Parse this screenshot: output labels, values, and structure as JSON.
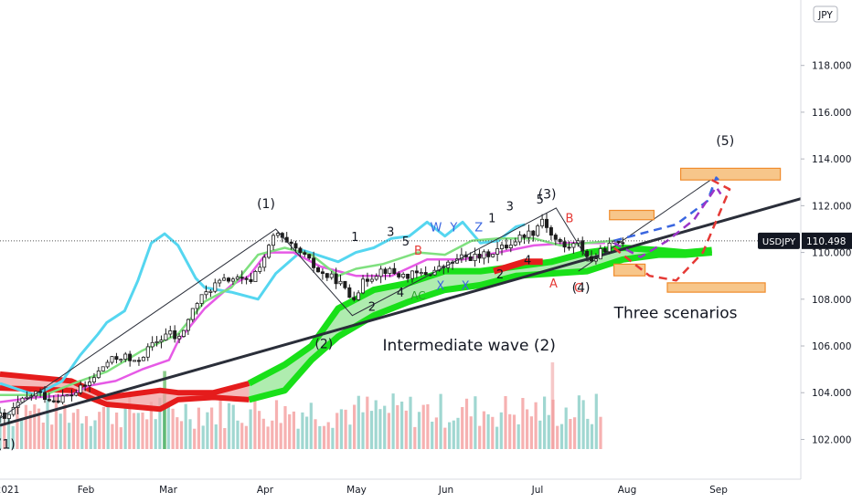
{
  "chart_data": {
    "type": "candlestick",
    "symbol": "USDJPY",
    "last_price_label": "110.498",
    "last_price": 110.498,
    "currency_label": "JPY",
    "x_tick_labels": [
      {
        "label": "2021",
        "x": 0
      },
      {
        "label": "Feb",
        "x": 1
      },
      {
        "label": "Mar",
        "x": 2
      },
      {
        "label": "Apr",
        "x": 3
      },
      {
        "label": "May",
        "x": 4
      },
      {
        "label": "Jun",
        "x": 5
      },
      {
        "label": "Jul",
        "x": 6
      },
      {
        "label": "Aug",
        "x": 7
      },
      {
        "label": "Sep",
        "x": 8
      }
    ],
    "y_ticks": [
      102,
      104,
      106,
      108,
      110,
      112,
      114,
      116,
      118
    ],
    "y_tick_labels": [
      "102.000",
      "104.000",
      "106.000",
      "108.000",
      "110.000",
      "112.000",
      "114.000",
      "116.000",
      "118.000"
    ],
    "ylim": [
      100.3,
      120.8
    ],
    "xlim": [
      0.0,
      9.0
    ],
    "grid": false,
    "price_path": [
      [
        0.0,
        103.0
      ],
      [
        0.05,
        102.8
      ],
      [
        0.2,
        103.5
      ],
      [
        0.4,
        104.0
      ],
      [
        0.6,
        103.7
      ],
      [
        0.8,
        103.9
      ],
      [
        1.0,
        104.4
      ],
      [
        1.2,
        105.3
      ],
      [
        1.4,
        105.6
      ],
      [
        1.5,
        105.2
      ],
      [
        1.7,
        106.0
      ],
      [
        1.9,
        106.6
      ],
      [
        2.0,
        106.2
      ],
      [
        2.2,
        107.8
      ],
      [
        2.4,
        108.6
      ],
      [
        2.6,
        108.9
      ],
      [
        2.8,
        108.7
      ],
      [
        3.0,
        110.0
      ],
      [
        3.1,
        110.9
      ],
      [
        3.2,
        110.4
      ],
      [
        3.4,
        109.9
      ],
      [
        3.6,
        109.1
      ],
      [
        3.8,
        108.8
      ],
      [
        3.95,
        108.0
      ],
      [
        4.1,
        108.8
      ],
      [
        4.3,
        109.3
      ],
      [
        4.5,
        109.0
      ],
      [
        4.8,
        109.1
      ],
      [
        5.0,
        109.4
      ],
      [
        5.2,
        109.8
      ],
      [
        5.4,
        109.8
      ],
      [
        5.7,
        110.3
      ],
      [
        5.9,
        110.8
      ],
      [
        6.0,
        110.9
      ],
      [
        6.1,
        111.5
      ],
      [
        6.2,
        110.7
      ],
      [
        6.35,
        110.2
      ],
      [
        6.5,
        110.4
      ],
      [
        6.65,
        109.6
      ],
      [
        6.8,
        110.2
      ],
      [
        7.0,
        110.5
      ]
    ],
    "candle_x_range": [
      0.0,
      7.0
    ],
    "volume_x_range": [
      0.0,
      6.75
    ],
    "volume_spike_bars": [
      {
        "x": 1.85,
        "height": 0.9,
        "color": "#2ca02c"
      },
      {
        "x": 6.21,
        "height": 1.0,
        "color": "#ef9a9a"
      }
    ],
    "chikou_path": [
      [
        0.0,
        104.4
      ],
      [
        0.4,
        103.9
      ],
      [
        0.7,
        104.5
      ],
      [
        0.9,
        105.6
      ],
      [
        1.1,
        106.5
      ],
      [
        1.2,
        107.0
      ],
      [
        1.4,
        107.5
      ],
      [
        1.55,
        108.8
      ],
      [
        1.7,
        110.4
      ],
      [
        1.85,
        110.8
      ],
      [
        2.0,
        110.3
      ],
      [
        2.2,
        108.9
      ],
      [
        2.3,
        108.5
      ],
      [
        2.6,
        108.3
      ],
      [
        2.9,
        108.0
      ],
      [
        3.1,
        109.1
      ],
      [
        3.4,
        110.1
      ],
      [
        3.8,
        109.6
      ],
      [
        4.0,
        110.0
      ],
      [
        4.2,
        110.2
      ],
      [
        4.4,
        110.6
      ],
      [
        4.6,
        110.7
      ],
      [
        4.8,
        111.3
      ],
      [
        5.0,
        110.7
      ],
      [
        5.2,
        111.3
      ],
      [
        5.4,
        110.4
      ],
      [
        5.6,
        110.5
      ],
      [
        5.8,
        111.1
      ],
      [
        5.9,
        111.2
      ]
    ],
    "kijun_path": [
      [
        0.0,
        103.6
      ],
      [
        0.4,
        103.8
      ],
      [
        0.8,
        103.9
      ],
      [
        1.0,
        104.3
      ],
      [
        1.3,
        104.5
      ],
      [
        1.6,
        105.0
      ],
      [
        1.9,
        105.4
      ],
      [
        2.0,
        106.2
      ],
      [
        2.3,
        107.6
      ],
      [
        2.6,
        108.6
      ],
      [
        2.8,
        109.0
      ],
      [
        3.0,
        110.0
      ],
      [
        3.3,
        110.0
      ],
      [
        3.6,
        109.4
      ],
      [
        4.0,
        109.0
      ],
      [
        4.4,
        109.0
      ],
      [
        4.8,
        109.7
      ],
      [
        5.2,
        109.7
      ],
      [
        5.6,
        110.0
      ],
      [
        6.0,
        110.3
      ],
      [
        6.4,
        110.4
      ],
      [
        6.8,
        110.4
      ]
    ],
    "tenkan_path": [
      [
        0.0,
        103.9
      ],
      [
        0.5,
        103.9
      ],
      [
        0.9,
        104.5
      ],
      [
        1.2,
        104.9
      ],
      [
        1.6,
        105.8
      ],
      [
        2.0,
        106.5
      ],
      [
        2.3,
        107.9
      ],
      [
        2.6,
        108.5
      ],
      [
        2.9,
        109.9
      ],
      [
        3.2,
        110.2
      ],
      [
        3.5,
        109.9
      ],
      [
        3.8,
        109.0
      ],
      [
        4.0,
        109.3
      ],
      [
        4.3,
        109.5
      ],
      [
        4.7,
        110.0
      ],
      [
        5.0,
        109.9
      ],
      [
        5.3,
        110.5
      ],
      [
        5.6,
        110.6
      ],
      [
        6.0,
        110.6
      ],
      [
        6.3,
        110.3
      ],
      [
        6.6,
        110.4
      ],
      [
        6.9,
        110.5
      ]
    ],
    "cloud_upper": [
      [
        0.0,
        104.8
      ],
      [
        0.8,
        104.5
      ],
      [
        1.2,
        103.8
      ],
      [
        1.8,
        104.1
      ],
      [
        2.0,
        104.0
      ],
      [
        2.4,
        104.0
      ],
      [
        2.8,
        104.4
      ],
      [
        3.2,
        105.2
      ],
      [
        3.5,
        106.0
      ],
      [
        3.8,
        107.6
      ],
      [
        4.2,
        108.4
      ],
      [
        4.6,
        108.7
      ],
      [
        5.0,
        109.2
      ],
      [
        5.4,
        109.2
      ],
      [
        5.8,
        109.4
      ],
      [
        6.2,
        109.6
      ],
      [
        6.6,
        110.0
      ],
      [
        7.0,
        110.2
      ],
      [
        7.4,
        110.1
      ],
      [
        7.7,
        110.0
      ],
      [
        8.0,
        110.1
      ]
    ],
    "cloud_lower": [
      [
        0.0,
        104.2
      ],
      [
        0.8,
        104.1
      ],
      [
        1.2,
        103.5
      ],
      [
        1.8,
        103.3
      ],
      [
        2.0,
        103.7
      ],
      [
        2.4,
        103.8
      ],
      [
        2.8,
        103.7
      ],
      [
        3.2,
        104.1
      ],
      [
        3.5,
        105.4
      ],
      [
        3.8,
        106.4
      ],
      [
        4.2,
        107.3
      ],
      [
        4.6,
        107.9
      ],
      [
        5.0,
        108.4
      ],
      [
        5.4,
        108.6
      ],
      [
        5.8,
        109.0
      ],
      [
        6.2,
        109.1
      ],
      [
        6.6,
        109.2
      ],
      [
        7.0,
        109.7
      ],
      [
        7.4,
        109.9
      ],
      [
        7.7,
        109.9
      ],
      [
        8.0,
        110.0
      ]
    ],
    "trendline": [
      [
        0.0,
        102.6
      ],
      [
        9.0,
        112.3
      ]
    ],
    "channel_line": [
      [
        6.5,
        109.2
      ],
      [
        8.1,
        113.4
      ]
    ],
    "wave_lines": [
      [
        [
          0.0,
          102.9
        ],
        [
          3.1,
          111.0
        ],
        [
          3.96,
          107.3
        ],
        [
          6.25,
          111.9
        ],
        [
          6.62,
          109.6
        ]
      ]
    ],
    "target_zones": [
      {
        "x0": 7.65,
        "x1": 8.77,
        "y0": 113.1,
        "y1": 113.6
      },
      {
        "x0": 6.85,
        "x1": 7.35,
        "y0": 111.4,
        "y1": 111.8
      },
      {
        "x0": 7.5,
        "x1": 8.6,
        "y0": 108.3,
        "y1": 108.7
      },
      {
        "x0": 6.9,
        "x1": 7.25,
        "y0": 109.0,
        "y1": 109.5
      }
    ],
    "scenario_paths": [
      {
        "color": "#3a66e0",
        "points": [
          [
            6.9,
            110.5
          ],
          [
            7.3,
            110.9
          ],
          [
            7.6,
            111.2
          ],
          [
            7.95,
            112.2
          ],
          [
            8.05,
            113.2
          ],
          [
            8.1,
            113.0
          ]
        ]
      },
      {
        "color": "#9b35c8",
        "points": [
          [
            6.9,
            110.4
          ],
          [
            7.2,
            109.8
          ],
          [
            7.5,
            110.5
          ],
          [
            7.8,
            111.4
          ],
          [
            8.05,
            112.8
          ],
          [
            8.1,
            112.5
          ]
        ]
      },
      {
        "color": "#e53935",
        "points": [
          [
            6.9,
            110.2
          ],
          [
            7.3,
            109.0
          ],
          [
            7.6,
            108.8
          ],
          [
            7.9,
            110.0
          ],
          [
            8.2,
            112.7
          ],
          [
            8.0,
            113.1
          ]
        ]
      }
    ],
    "wave_labels": [
      {
        "text": "(1)",
        "x": 2.99,
        "y": 111.9,
        "color": "#131722",
        "size": 14
      },
      {
        "text": "(2)",
        "x": 3.64,
        "y": 105.9,
        "color": "#131722",
        "size": 14
      },
      {
        "text": "(3)",
        "x": 6.15,
        "y": 112.3,
        "color": "#131722",
        "size": 14
      },
      {
        "text": "(4)",
        "x": 6.53,
        "y": 108.3,
        "color": "#131722",
        "size": 14
      },
      {
        "text": "(5)",
        "x": 8.15,
        "y": 114.6,
        "color": "#131722",
        "size": 14
      },
      {
        "text": "(1)",
        "x": 0.07,
        "y": 101.6,
        "color": "#131722",
        "size": 14
      },
      {
        "text": "1",
        "x": 3.99,
        "y": 110.5,
        "color": "#131722",
        "size": 13
      },
      {
        "text": "2",
        "x": 4.18,
        "y": 107.5,
        "color": "#131722",
        "size": 13
      },
      {
        "text": "3",
        "x": 4.39,
        "y": 110.7,
        "color": "#131722",
        "size": 13
      },
      {
        "text": "4",
        "x": 4.5,
        "y": 108.1,
        "color": "#131722",
        "size": 13
      },
      {
        "text": "5",
        "x": 4.56,
        "y": 110.3,
        "color": "#131722",
        "size": 13
      },
      {
        "text": "1",
        "x": 5.53,
        "y": 111.3,
        "color": "#131722",
        "size": 13
      },
      {
        "text": "2",
        "x": 5.62,
        "y": 108.9,
        "color": "#131722",
        "size": 13
      },
      {
        "text": "3",
        "x": 5.73,
        "y": 111.8,
        "color": "#131722",
        "size": 13
      },
      {
        "text": "4",
        "x": 5.93,
        "y": 109.5,
        "color": "#131722",
        "size": 13
      },
      {
        "text": "5",
        "x": 6.07,
        "y": 112.1,
        "color": "#131722",
        "size": 13
      },
      {
        "text": "B",
        "x": 4.7,
        "y": 109.9,
        "color": "#e53935",
        "size": 13
      },
      {
        "text": "AC",
        "x": 4.7,
        "y": 108.0,
        "color": "#2ca02c",
        "size": 12
      },
      {
        "text": "W",
        "x": 4.9,
        "y": 110.9,
        "color": "#3a66e0",
        "size": 13
      },
      {
        "text": "Y",
        "x": 5.1,
        "y": 110.9,
        "color": "#3a66e0",
        "size": 13
      },
      {
        "text": "Z",
        "x": 5.38,
        "y": 110.9,
        "color": "#3a66e0",
        "size": 13
      },
      {
        "text": "X",
        "x": 4.95,
        "y": 108.4,
        "color": "#3a66e0",
        "size": 13
      },
      {
        "text": "X",
        "x": 5.23,
        "y": 108.4,
        "color": "#3a66e0",
        "size": 13
      },
      {
        "text": "B",
        "x": 6.4,
        "y": 111.3,
        "color": "#e53935",
        "size": 13
      },
      {
        "text": "A",
        "x": 6.22,
        "y": 108.5,
        "color": "#e53935",
        "size": 13
      },
      {
        "text": "C",
        "x": 6.5,
        "y": 108.3,
        "color": "#e53935",
        "size": 13
      }
    ],
    "annotations": [
      {
        "text": "Intermediate wave (2)",
        "x": 4.3,
        "y": 105.8,
        "size": 17
      },
      {
        "text": "Three scenarios",
        "x": 6.9,
        "y": 107.2,
        "size": 17
      }
    ]
  }
}
